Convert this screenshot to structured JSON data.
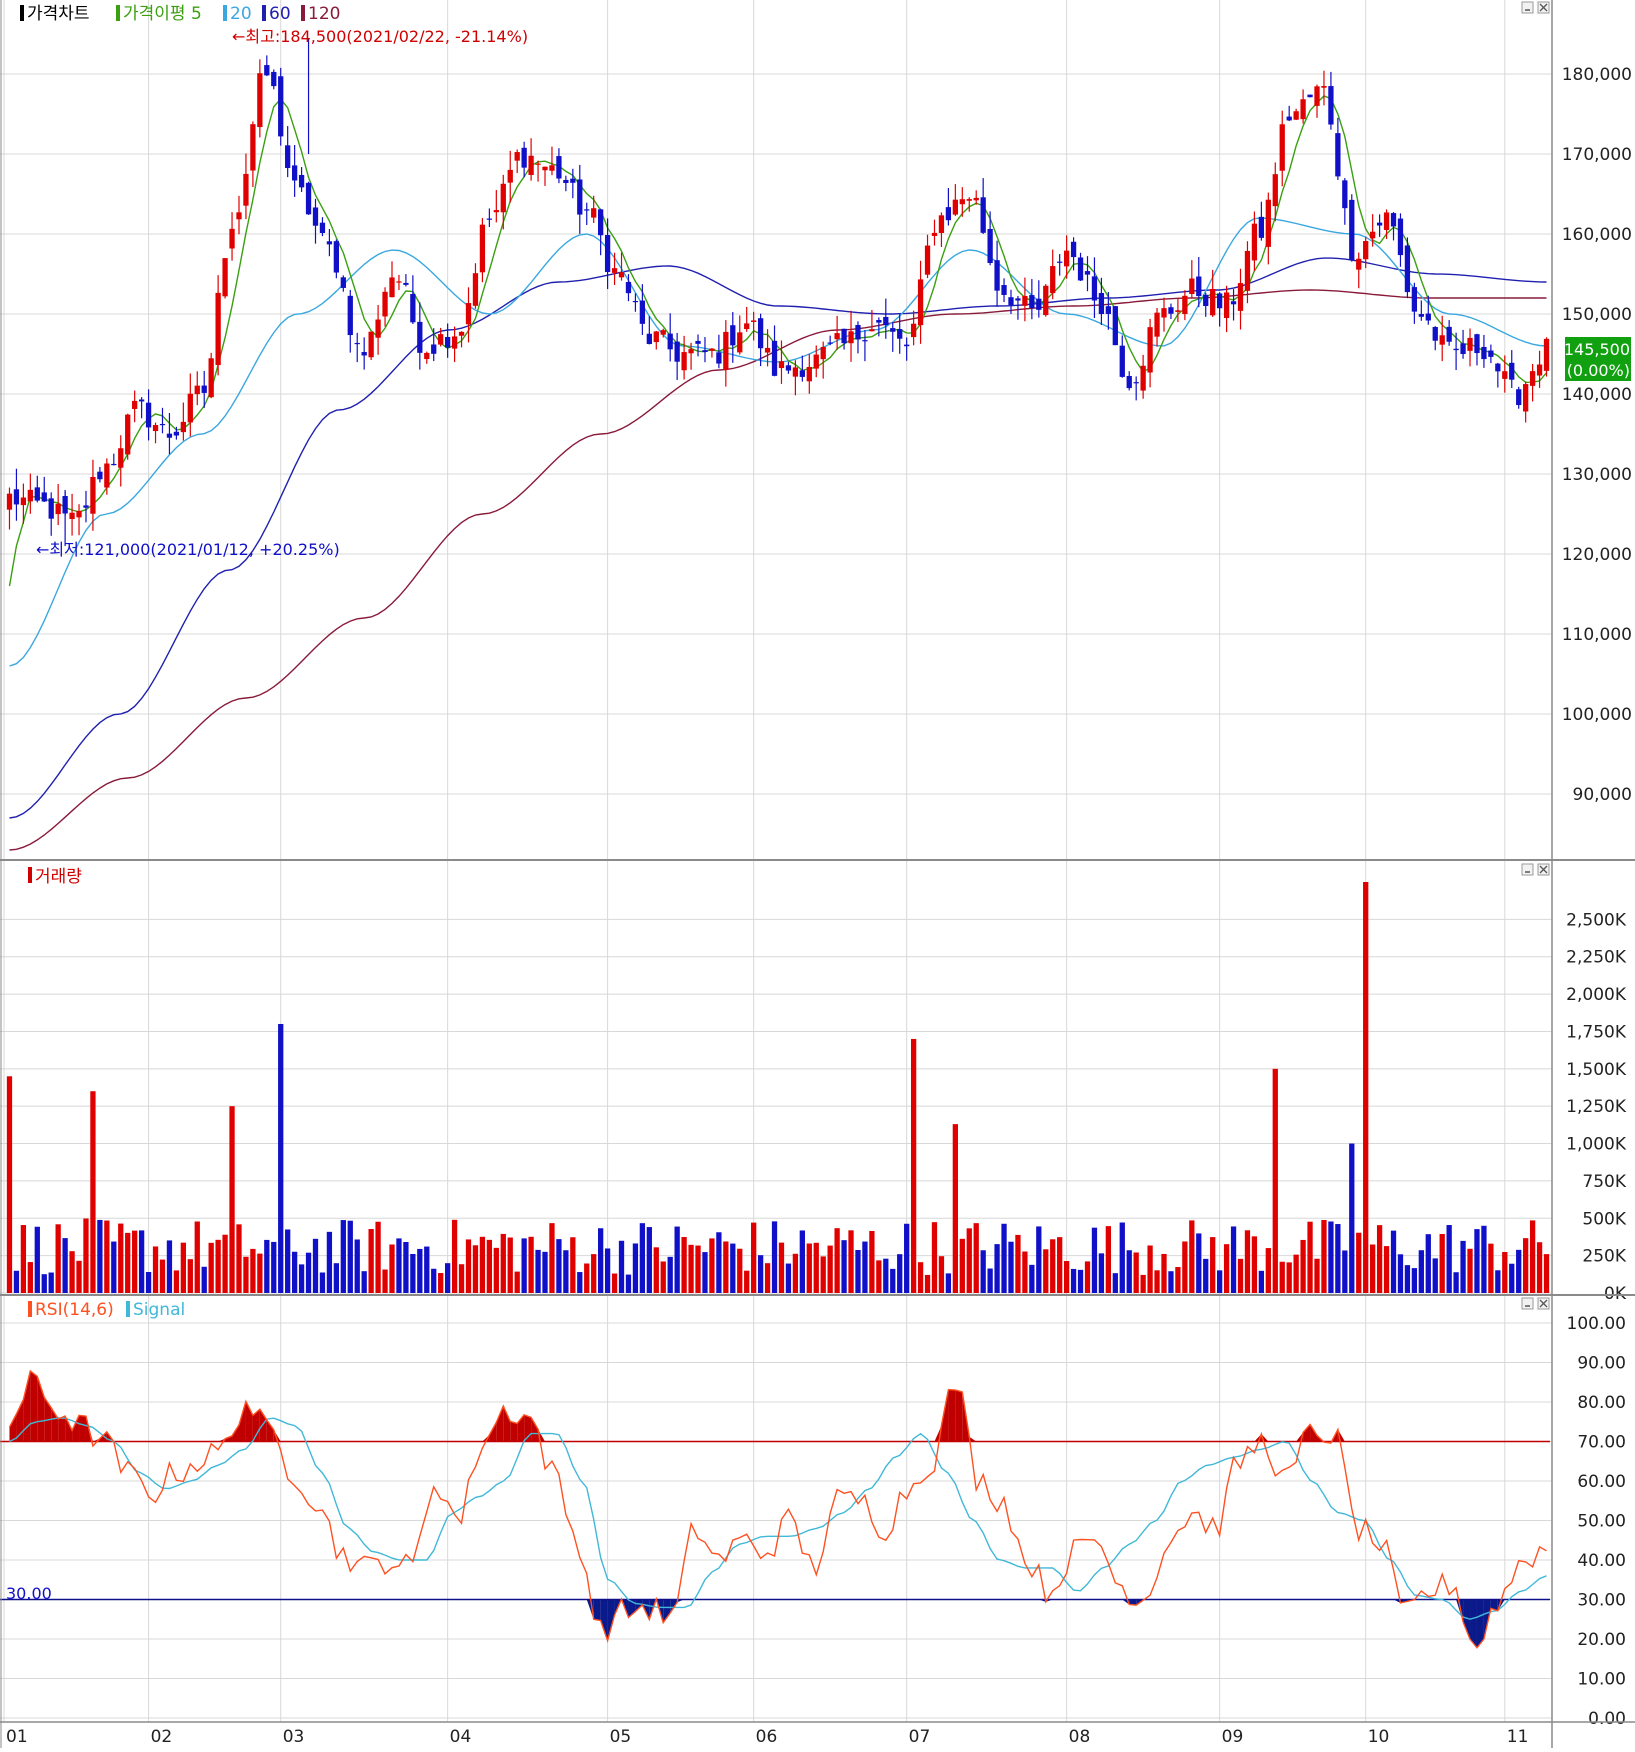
{
  "colors": {
    "up": "#e00000",
    "down": "#1010c8",
    "ma5": "#3aa010",
    "ma20": "#3aa8e0",
    "ma60": "#2020b0",
    "ma120": "#8a1a3a",
    "rsi": "#ff5020",
    "signal": "#40b8d8",
    "overbought_fill": "#c00000",
    "oversold_fill": "#0a1a8a",
    "grid": "#d8d8d8",
    "price_tag_bg": "#10a010"
  },
  "icons": [
    "minimize-icon",
    "close-icon"
  ],
  "price_panel": {
    "legend": {
      "title": "가격차트",
      "ma_label": "가격이평 5",
      "p20": "20",
      "p60": "60",
      "p120": "120"
    },
    "high_annotation": "←최고:184,500(2021/02/22, -21.14%)",
    "low_annotation": "←최저:121,000(2021/01/12, +20.25%)",
    "current_price": "145,500",
    "current_change": "(0.00%)",
    "y_labels": [
      "180,000",
      "170,000",
      "160,000",
      "150,000",
      "140,000",
      "130,000",
      "120,000",
      "110,000",
      "100,000",
      "90,000"
    ]
  },
  "volume_panel": {
    "legend": {
      "title": "거래량"
    },
    "y_labels": [
      "2,500K",
      "2,250K",
      "2,000K",
      "1,750K",
      "1,500K",
      "1,250K",
      "1,000K",
      "750K",
      "500K",
      "250K",
      "0K"
    ]
  },
  "rsi_panel": {
    "legend": {
      "rsi": "RSI(14,6)",
      "signal": "Signal"
    },
    "oversold_label": "30.00",
    "y_labels": [
      "100.00",
      "90.00",
      "80.00",
      "70.00",
      "60.00",
      "50.00",
      "40.00",
      "30.00",
      "20.00",
      "10.00",
      "0.00"
    ]
  },
  "x_labels": [
    "01",
    "02",
    "03",
    "04",
    "05",
    "06",
    "07",
    "08",
    "09",
    "10",
    "11"
  ],
  "chart_data": [
    {
      "type": "candlestick",
      "title": "가격차트",
      "x_ticks": [
        "01",
        "02",
        "03",
        "04",
        "05",
        "06",
        "07",
        "08",
        "09",
        "10",
        "11"
      ],
      "ylim": [
        82000,
        188000
      ],
      "ma_periods": [
        5,
        20,
        60,
        120
      ],
      "high": {
        "value": 184500,
        "date": "2021/02/22"
      },
      "low": {
        "value": 121000,
        "date": "2021/01/12"
      },
      "last_close": 145500,
      "anchors": [
        {
          "x": "01",
          "close": 127000
        },
        {
          "x": "01",
          "close": 126000
        },
        {
          "x": "01",
          "close": 124000
        },
        {
          "x": "01",
          "close": 131000
        },
        {
          "x": "02",
          "close": 138000
        },
        {
          "x": "02",
          "close": 135000
        },
        {
          "x": "02",
          "close": 140000
        },
        {
          "x": "02",
          "close": 162000
        },
        {
          "x": "02",
          "close": 180000
        },
        {
          "x": "03",
          "close": 165000
        },
        {
          "x": "03",
          "close": 158000
        },
        {
          "x": "03",
          "close": 145000
        },
        {
          "x": "03",
          "close": 155000
        },
        {
          "x": "03",
          "close": 146000
        },
        {
          "x": "03",
          "close": 148000
        },
        {
          "x": "04",
          "close": 162000
        },
        {
          "x": "04",
          "close": 170000
        },
        {
          "x": "04",
          "close": 168000
        },
        {
          "x": "04",
          "close": 163000
        },
        {
          "x": "04",
          "close": 155000
        },
        {
          "x": "05",
          "close": 147000
        },
        {
          "x": "05",
          "close": 145000
        },
        {
          "x": "05",
          "close": 145000
        },
        {
          "x": "05",
          "close": 149000
        },
        {
          "x": "06",
          "close": 143000
        },
        {
          "x": "06",
          "close": 144000
        },
        {
          "x": "06",
          "close": 146000
        },
        {
          "x": "06",
          "close": 149000
        },
        {
          "x": "07",
          "close": 146000
        },
        {
          "x": "07",
          "close": 162000
        },
        {
          "x": "07",
          "close": 165000
        },
        {
          "x": "07",
          "close": 153000
        },
        {
          "x": "07",
          "close": 150000
        },
        {
          "x": "08",
          "close": 158000
        },
        {
          "x": "08",
          "close": 152000
        },
        {
          "x": "08",
          "close": 142000
        },
        {
          "x": "08",
          "close": 150000
        },
        {
          "x": "09",
          "close": 153000
        },
        {
          "x": "09",
          "close": 151000
        },
        {
          "x": "09",
          "close": 160000
        },
        {
          "x": "09",
          "close": 175000
        },
        {
          "x": "10",
          "close": 178000
        },
        {
          "x": "10",
          "close": 158000
        },
        {
          "x": "10",
          "close": 162000
        },
        {
          "x": "10",
          "close": 150000
        },
        {
          "x": "11",
          "close": 145000
        },
        {
          "x": "11",
          "close": 146000
        },
        {
          "x": "11",
          "close": 140000
        },
        {
          "x": "11",
          "close": 145500
        }
      ],
      "ma_anchors": {
        "ma20": [
          106000,
          125000,
          135000,
          150000,
          158000,
          150000,
          160000,
          146000,
          144000,
          148000,
          158000,
          150000,
          146000,
          162000,
          160000,
          150000,
          146000
        ],
        "ma60": [
          87000,
          100000,
          118000,
          138000,
          148000,
          154000,
          156000,
          151000,
          150000,
          151000,
          152000,
          153000,
          157000,
          155000,
          154000
        ],
        "ma120": [
          83000,
          92000,
          102000,
          112000,
          125000,
          135000,
          143000,
          148000,
          150000,
          151000,
          152000,
          153000,
          152000,
          152000
        ]
      }
    },
    {
      "type": "bar",
      "title": "거래량",
      "x_ticks": [
        "01",
        "02",
        "03",
        "04",
        "05",
        "06",
        "07",
        "08",
        "09",
        "10",
        "11"
      ],
      "ylim": [
        0,
        2750000
      ],
      "peaks": [
        {
          "x": "01",
          "value": 1450000
        },
        {
          "x": "01",
          "value": 1350000
        },
        {
          "x": "02",
          "value": 1250000
        },
        {
          "x": "03",
          "value": 1800000
        },
        {
          "x": "07",
          "value": 1700000
        },
        {
          "x": "07",
          "value": 1130000
        },
        {
          "x": "09",
          "value": 1500000
        },
        {
          "x": "10",
          "value": 2750000
        },
        {
          "x": "10",
          "value": 1000000
        }
      ]
    },
    {
      "type": "line",
      "title": "RSI(14,6)",
      "series": [
        {
          "name": "RSI(14,6)"
        },
        {
          "name": "Signal"
        }
      ],
      "x_ticks": [
        "01",
        "02",
        "03",
        "04",
        "05",
        "06",
        "07",
        "08",
        "09",
        "10",
        "11"
      ],
      "ylim": [
        0,
        100
      ],
      "overbought": 70,
      "oversold": 30,
      "rsi_anchors": [
        75,
        85,
        78,
        74,
        70,
        62,
        57,
        62,
        65,
        68,
        80,
        72,
        62,
        55,
        42,
        38,
        40,
        38,
        60,
        50,
        70,
        78,
        76,
        62,
        45,
        22,
        27,
        28,
        25,
        48,
        40,
        45,
        42,
        50,
        38,
        55,
        55,
        48,
        58,
        65,
        85,
        60,
        55,
        40,
        32,
        42,
        45,
        33,
        30,
        45,
        52,
        48,
        65,
        70,
        60,
        72,
        72,
        48,
        44,
        26,
        32,
        34,
        18,
        30,
        40,
        43
      ],
      "signal_anchors": [
        70,
        75,
        76,
        74,
        70,
        62,
        58,
        60,
        64,
        68,
        76,
        74,
        62,
        48,
        42,
        40,
        40,
        52,
        56,
        60,
        72,
        72,
        60,
        35,
        29,
        28,
        28,
        37,
        44,
        46,
        46,
        48,
        52,
        58,
        66,
        72,
        62,
        50,
        40,
        38,
        38,
        32,
        38,
        44,
        50,
        60,
        64,
        66,
        68,
        70,
        60,
        52,
        50,
        40,
        31,
        30,
        25,
        27,
        32,
        36
      ]
    }
  ]
}
